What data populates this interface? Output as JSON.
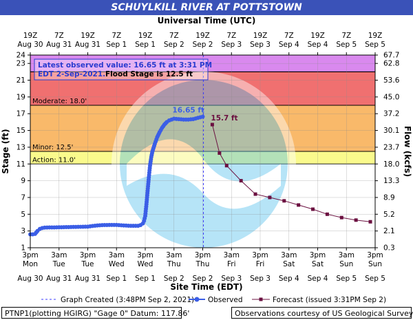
{
  "title": "SCHUYLKILL RIVER AT POTTSTOWN",
  "top_axis_title": "Universal Time (UTC)",
  "bottom_axis_title": "Site Time (EDT)",
  "annotation": {
    "line1": "Latest observed value: 16.65 ft at 3:31 PM",
    "line2_date": "EDT 2-Sep-2021.",
    "line2_flood": "Flood Stage is 12.5 ft"
  },
  "legend": {
    "created": "Graph Created (3:48PM Sep 2, 2021)",
    "observed": "Observed",
    "forecast": "Forecast (issued 3:31PM Sep 2)"
  },
  "footer": {
    "left": "PTNP1(plotting HGIRG) \"Gage 0\" Datum: 117.86'",
    "right": "Observations courtesy of US Geological Survey"
  },
  "colors": {
    "observed": "#3b5ee6",
    "forecast": "#6b1040",
    "action": "#fafa8c",
    "minor": "#f9b96a",
    "moderate": "#f07070",
    "major": "#d989ee",
    "title_bar": "#3a52b8"
  },
  "chart_data": {
    "type": "line",
    "title": "SCHUYLKILL RIVER AT POTTSTOWN",
    "ylabel": "Stage (ft)",
    "y2label": "Flow (kcfs)",
    "xlabel": "Site Time (EDT)",
    "x2label": "Universal Time (UTC)",
    "ylim": [
      1,
      24
    ],
    "x_unit": "hours since Mon Aug 30 3pm EDT",
    "xlim": [
      0,
      144
    ],
    "yticks": [
      1,
      3,
      5,
      7,
      9,
      11,
      13,
      15,
      17,
      19,
      21,
      23,
      24
    ],
    "flow_ticks": [
      {
        "stage": 1,
        "label": "0.3"
      },
      {
        "stage": 3,
        "label": "2.1"
      },
      {
        "stage": 5,
        "label": "5.2"
      },
      {
        "stage": 7,
        "label": "8.9"
      },
      {
        "stage": 9,
        "label": "13.3"
      },
      {
        "stage": 11,
        "label": "18.0"
      },
      {
        "stage": 13,
        "label": "23.7"
      },
      {
        "stage": 15,
        "label": "30.1"
      },
      {
        "stage": 17,
        "label": "37.2"
      },
      {
        "stage": 19,
        "label": "45.0"
      },
      {
        "stage": 21,
        "label": "53.6"
      },
      {
        "stage": 23,
        "label": "62.8"
      },
      {
        "stage": 24,
        "label": "67.7"
      }
    ],
    "bottom_ticks": [
      {
        "x": 0,
        "t": "3pm",
        "d": "Mon",
        "date": "Aug 30"
      },
      {
        "x": 12,
        "t": "3am",
        "d": "Tue",
        "date": "Aug 31"
      },
      {
        "x": 24,
        "t": "3pm",
        "d": "Tue",
        "date": "Aug 31"
      },
      {
        "x": 36,
        "t": "3am",
        "d": "Wed",
        "date": "Sep 1"
      },
      {
        "x": 48,
        "t": "3pm",
        "d": "Wed",
        "date": "Sep 1"
      },
      {
        "x": 60,
        "t": "3am",
        "d": "Thu",
        "date": "Sep 2"
      },
      {
        "x": 72,
        "t": "3pm",
        "d": "Thu",
        "date": "Sep 2"
      },
      {
        "x": 84,
        "t": "3am",
        "d": "Fri",
        "date": "Sep 3"
      },
      {
        "x": 96,
        "t": "3pm",
        "d": "Fri",
        "date": "Sep 3"
      },
      {
        "x": 108,
        "t": "3am",
        "d": "Sat",
        "date": "Sep 4"
      },
      {
        "x": 120,
        "t": "3pm",
        "d": "Sat",
        "date": "Sep 4"
      },
      {
        "x": 132,
        "t": "3am",
        "d": "Sun",
        "date": "Sep 5"
      },
      {
        "x": 144,
        "t": "3pm",
        "d": "Sun",
        "date": "Sep 5"
      }
    ],
    "top_ticks": [
      {
        "x": 0,
        "t": "19Z",
        "date": "Aug 30"
      },
      {
        "x": 12,
        "t": "7Z",
        "date": "Aug 31"
      },
      {
        "x": 24,
        "t": "19Z",
        "date": "Aug 31"
      },
      {
        "x": 36,
        "t": "7Z",
        "date": "Sep 1"
      },
      {
        "x": 48,
        "t": "19Z",
        "date": "Sep 1"
      },
      {
        "x": 60,
        "t": "7Z",
        "date": "Sep 2"
      },
      {
        "x": 72,
        "t": "19Z",
        "date": "Sep 2"
      },
      {
        "x": 84,
        "t": "7Z",
        "date": "Sep 3"
      },
      {
        "x": 96,
        "t": "19Z",
        "date": "Sep 3"
      },
      {
        "x": 108,
        "t": "7Z",
        "date": "Sep 4"
      },
      {
        "x": 120,
        "t": "19Z",
        "date": "Sep 4"
      },
      {
        "x": 132,
        "t": "7Z",
        "date": "Sep 5"
      },
      {
        "x": 144,
        "t": "19Z",
        "date": "Sep 5"
      }
    ],
    "flood_categories": [
      {
        "name": "Action",
        "label": "Action: 11.0'",
        "from": 11,
        "to": 12.5,
        "color": "#fafa8c"
      },
      {
        "name": "Minor",
        "label": "Minor: 12.5'",
        "from": 12.5,
        "to": 18,
        "color": "#f9b96a"
      },
      {
        "name": "Moderate",
        "label": "Moderate: 18.0'",
        "from": 18,
        "to": 22,
        "color": "#f07070"
      },
      {
        "name": "Major",
        "label": "",
        "from": 22,
        "to": 24,
        "color": "#d989ee"
      }
    ],
    "graph_created_x": 72.3,
    "observed_peak_label": "16.65 ft",
    "forecast_peak_label": "15.7 ft",
    "series": [
      {
        "name": "Observed",
        "points": [
          [
            0,
            2.6
          ],
          [
            1,
            2.6
          ],
          [
            2,
            2.65
          ],
          [
            3,
            3.0
          ],
          [
            4,
            3.25
          ],
          [
            5,
            3.35
          ],
          [
            6,
            3.4
          ],
          [
            8,
            3.42
          ],
          [
            10,
            3.42
          ],
          [
            12,
            3.44
          ],
          [
            15,
            3.46
          ],
          [
            18,
            3.48
          ],
          [
            21,
            3.5
          ],
          [
            24,
            3.52
          ],
          [
            26,
            3.6
          ],
          [
            28,
            3.66
          ],
          [
            30,
            3.7
          ],
          [
            33,
            3.72
          ],
          [
            36,
            3.72
          ],
          [
            39,
            3.66
          ],
          [
            42,
            3.62
          ],
          [
            45,
            3.62
          ],
          [
            46,
            3.7
          ],
          [
            47,
            3.9
          ],
          [
            47.5,
            4.2
          ],
          [
            48,
            4.8
          ],
          [
            48.5,
            6.2
          ],
          [
            49,
            7.8
          ],
          [
            49.5,
            9.4
          ],
          [
            50,
            10.8
          ],
          [
            50.5,
            11.8
          ],
          [
            51,
            12.5
          ],
          [
            52,
            13.4
          ],
          [
            53,
            14.2
          ],
          [
            54,
            14.8
          ],
          [
            55,
            15.3
          ],
          [
            56,
            15.7
          ],
          [
            57,
            16.0
          ],
          [
            58,
            16.2
          ],
          [
            60,
            16.4
          ],
          [
            62,
            16.35
          ],
          [
            64,
            16.3
          ],
          [
            66,
            16.3
          ],
          [
            68,
            16.35
          ],
          [
            70,
            16.5
          ],
          [
            72,
            16.65
          ]
        ]
      },
      {
        "name": "Forecast",
        "points": [
          [
            76,
            15.7
          ],
          [
            79,
            12.3
          ],
          [
            82,
            10.8
          ],
          [
            88,
            9.0
          ],
          [
            94,
            7.4
          ],
          [
            100,
            7.0
          ],
          [
            106,
            6.6
          ],
          [
            112,
            6.1
          ],
          [
            118,
            5.6
          ],
          [
            124,
            5.0
          ],
          [
            130,
            4.6
          ],
          [
            136,
            4.3
          ],
          [
            142,
            4.1
          ]
        ]
      }
    ]
  }
}
